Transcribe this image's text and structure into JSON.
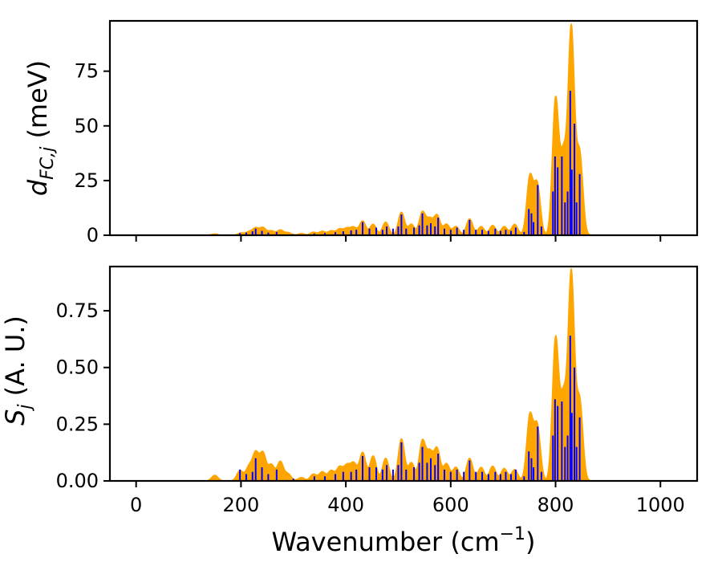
{
  "chart_data": [
    {
      "type": "area",
      "panel": "top",
      "ylabel_main": "d",
      "ylabel_sub": "FC,j",
      "ylabel_unit": " (meV)",
      "xlim": [
        -50,
        1070
      ],
      "ylim": [
        0,
        98
      ],
      "xticks": [
        0,
        200,
        400,
        600,
        800,
        1000
      ],
      "show_xtick_labels": false,
      "yticks": [
        0,
        25,
        50,
        75
      ],
      "ytick_labels": [
        "0",
        "25",
        "50",
        "75"
      ],
      "baseline_range": [
        0,
        1020
      ],
      "envelope_width": 6,
      "series": [
        {
          "kind": "broadened-envelope",
          "color": "#FFA500",
          "peaks": [
            [
              150,
              0.6
            ],
            [
              200,
              1.0
            ],
            [
              215,
              1.5
            ],
            [
              228,
              3.2
            ],
            [
              242,
              3.4
            ],
            [
              258,
              2.0
            ],
            [
              275,
              2.4
            ],
            [
              290,
              1.2
            ],
            [
              315,
              0.8
            ],
            [
              338,
              1.4
            ],
            [
              355,
              1.8
            ],
            [
              372,
              2.0
            ],
            [
              388,
              2.8
            ],
            [
              402,
              3.0
            ],
            [
              415,
              3.5
            ],
            [
              432,
              6.5
            ],
            [
              452,
              5.0
            ],
            [
              476,
              6.0
            ],
            [
              506,
              10.5
            ],
            [
              525,
              5.0
            ],
            [
              546,
              10.5
            ],
            [
              560,
              7.0
            ],
            [
              574,
              9.0
            ],
            [
              592,
              5.0
            ],
            [
              610,
              4.0
            ],
            [
              636,
              7.5
            ],
            [
              658,
              4.0
            ],
            [
              680,
              4.5
            ],
            [
              702,
              4.0
            ],
            [
              722,
              5.0
            ],
            [
              751,
              26.5
            ],
            [
              765,
              23.0
            ],
            [
              800,
              62.0
            ],
            [
              815,
              35.0
            ],
            [
              830,
              94.0
            ],
            [
              846,
              37.0
            ]
          ]
        },
        {
          "kind": "stick-spectrum",
          "color": "#0000FF",
          "sticks": [
            [
              198,
              1.0
            ],
            [
              210,
              1.2
            ],
            [
              222,
              1.8
            ],
            [
              228,
              3.0
            ],
            [
              240,
              2.0
            ],
            [
              252,
              1.2
            ],
            [
              268,
              1.5
            ],
            [
              300,
              0.5
            ],
            [
              340,
              0.8
            ],
            [
              360,
              1.0
            ],
            [
              380,
              1.4
            ],
            [
              395,
              1.8
            ],
            [
              410,
              2.2
            ],
            [
              420,
              2.5
            ],
            [
              432,
              6.0
            ],
            [
              445,
              3.0
            ],
            [
              458,
              3.5
            ],
            [
              470,
              2.5
            ],
            [
              478,
              4.0
            ],
            [
              490,
              3.0
            ],
            [
              500,
              4.0
            ],
            [
              506,
              9.5
            ],
            [
              515,
              3.0
            ],
            [
              530,
              3.5
            ],
            [
              540,
              4.5
            ],
            [
              546,
              10.0
            ],
            [
              555,
              4.5
            ],
            [
              562,
              5.5
            ],
            [
              570,
              4.0
            ],
            [
              576,
              8.0
            ],
            [
              588,
              3.0
            ],
            [
              600,
              2.5
            ],
            [
              612,
              3.5
            ],
            [
              625,
              2.5
            ],
            [
              636,
              7.0
            ],
            [
              648,
              2.5
            ],
            [
              660,
              2.5
            ],
            [
              672,
              2.0
            ],
            [
              685,
              3.0
            ],
            [
              695,
              2.0
            ],
            [
              705,
              2.5
            ],
            [
              715,
              2.0
            ],
            [
              724,
              3.5
            ],
            [
              740,
              1.5
            ],
            [
              749,
              12.0
            ],
            [
              754,
              10.0
            ],
            [
              758,
              6.0
            ],
            [
              766,
              23.0
            ],
            [
              773,
              4.0
            ],
            [
              795,
              20.0
            ],
            [
              799,
              36.0
            ],
            [
              804,
              31.0
            ],
            [
              812,
              36.0
            ],
            [
              818,
              15.0
            ],
            [
              823,
              20.0
            ],
            [
              828,
              66.0
            ],
            [
              831,
              30.0
            ],
            [
              836,
              51.0
            ],
            [
              840,
              15.0
            ],
            [
              846,
              28.0
            ]
          ]
        }
      ]
    },
    {
      "type": "area",
      "panel": "bottom",
      "ylabel_main": "S",
      "ylabel_sub": "j",
      "ylabel_unit": " (A. U.)",
      "xlabel_main": "Wavenumber (cm",
      "xlabel_sup": "−1",
      "xlabel_close": ")",
      "xlim": [
        -50,
        1070
      ],
      "ylim": [
        0,
        0.945
      ],
      "xticks": [
        0,
        200,
        400,
        600,
        800,
        1000
      ],
      "xtick_labels": [
        "0",
        "200",
        "400",
        "600",
        "800",
        "1000"
      ],
      "show_xtick_labels": true,
      "yticks": [
        0,
        0.25,
        0.5,
        0.75
      ],
      "ytick_labels": [
        "0.00",
        "0.25",
        "0.50",
        "0.75"
      ],
      "baseline_range": [
        0,
        1020
      ],
      "envelope_width": 6,
      "series": [
        {
          "kind": "broadened-envelope",
          "color": "#FFA500",
          "peaks": [
            [
              150,
              0.025
            ],
            [
              198,
              0.045
            ],
            [
              215,
              0.06
            ],
            [
              228,
              0.12
            ],
            [
              242,
              0.12
            ],
            [
              258,
              0.07
            ],
            [
              275,
              0.085
            ],
            [
              290,
              0.03
            ],
            [
              315,
              0.015
            ],
            [
              338,
              0.03
            ],
            [
              355,
              0.04
            ],
            [
              372,
              0.045
            ],
            [
              388,
              0.06
            ],
            [
              402,
              0.065
            ],
            [
              415,
              0.075
            ],
            [
              432,
              0.125
            ],
            [
              452,
              0.11
            ],
            [
              476,
              0.1
            ],
            [
              506,
              0.185
            ],
            [
              525,
              0.08
            ],
            [
              546,
              0.175
            ],
            [
              560,
              0.12
            ],
            [
              574,
              0.14
            ],
            [
              592,
              0.075
            ],
            [
              610,
              0.06
            ],
            [
              636,
              0.1
            ],
            [
              658,
              0.06
            ],
            [
              680,
              0.065
            ],
            [
              702,
              0.055
            ],
            [
              722,
              0.05
            ],
            [
              751,
              0.285
            ],
            [
              765,
              0.24
            ],
            [
              800,
              0.625
            ],
            [
              815,
              0.35
            ],
            [
              830,
              0.91
            ],
            [
              846,
              0.35
            ]
          ]
        },
        {
          "kind": "stick-spectrum",
          "color": "#0000FF",
          "sticks": [
            [
              198,
              0.05
            ],
            [
              210,
              0.03
            ],
            [
              222,
              0.04
            ],
            [
              228,
              0.1
            ],
            [
              240,
              0.06
            ],
            [
              252,
              0.03
            ],
            [
              268,
              0.05
            ],
            [
              300,
              0.01
            ],
            [
              340,
              0.02
            ],
            [
              360,
              0.02
            ],
            [
              380,
              0.03
            ],
            [
              395,
              0.04
            ],
            [
              410,
              0.04
            ],
            [
              420,
              0.05
            ],
            [
              432,
              0.11
            ],
            [
              445,
              0.06
            ],
            [
              458,
              0.06
            ],
            [
              470,
              0.05
            ],
            [
              478,
              0.07
            ],
            [
              490,
              0.05
            ],
            [
              500,
              0.07
            ],
            [
              506,
              0.17
            ],
            [
              515,
              0.05
            ],
            [
              530,
              0.06
            ],
            [
              540,
              0.08
            ],
            [
              546,
              0.15
            ],
            [
              555,
              0.08
            ],
            [
              562,
              0.1
            ],
            [
              570,
              0.07
            ],
            [
              576,
              0.12
            ],
            [
              588,
              0.05
            ],
            [
              600,
              0.04
            ],
            [
              612,
              0.05
            ],
            [
              625,
              0.04
            ],
            [
              636,
              0.09
            ],
            [
              648,
              0.04
            ],
            [
              660,
              0.04
            ],
            [
              672,
              0.03
            ],
            [
              685,
              0.04
            ],
            [
              695,
              0.03
            ],
            [
              705,
              0.04
            ],
            [
              715,
              0.03
            ],
            [
              724,
              0.05
            ],
            [
              740,
              0.02
            ],
            [
              749,
              0.13
            ],
            [
              754,
              0.1
            ],
            [
              758,
              0.06
            ],
            [
              766,
              0.24
            ],
            [
              773,
              0.04
            ],
            [
              795,
              0.2
            ],
            [
              799,
              0.36
            ],
            [
              804,
              0.33
            ],
            [
              812,
              0.35
            ],
            [
              818,
              0.15
            ],
            [
              823,
              0.2
            ],
            [
              828,
              0.64
            ],
            [
              831,
              0.3
            ],
            [
              836,
              0.5
            ],
            [
              840,
              0.15
            ],
            [
              846,
              0.28
            ]
          ]
        }
      ]
    }
  ]
}
